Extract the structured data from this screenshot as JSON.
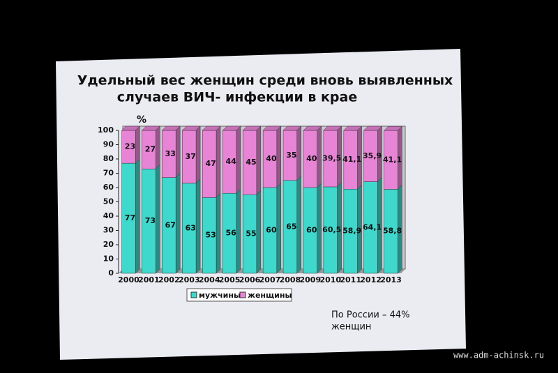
{
  "chart_data": {
    "type": "stacked-bar-3d",
    "title": [
      "Удельный вес  женщин среди вновь выявленных",
      "случаев ВИЧ- инфекции в крае"
    ],
    "y_label": "%",
    "categories": [
      "2000",
      "2001",
      "2002",
      "2003",
      "2004",
      "2005",
      "2006",
      "2007",
      "2008",
      "2009",
      "2010",
      "2011",
      "2012",
      "2013"
    ],
    "series": [
      {
        "name": "мужчины",
        "color": "#3ed8cc",
        "values": [
          77,
          73,
          67,
          63,
          53,
          56,
          55,
          60,
          65,
          60,
          60.5,
          58.9,
          64.1,
          58.8
        ],
        "value_labels": [
          "77",
          "73",
          "67",
          "63",
          "53",
          "56",
          "55",
          "60",
          "65",
          "60",
          "60,5",
          "58,9",
          "64,1",
          "58,8"
        ]
      },
      {
        "name": "женщины",
        "color": "#e884d6",
        "values": [
          23,
          27,
          33,
          37,
          47,
          44,
          45,
          40,
          35,
          40,
          39.5,
          41.1,
          35.9,
          41.1
        ],
        "value_labels": [
          "23",
          "27",
          "33",
          "37",
          "47",
          "44",
          "45",
          "40",
          "35",
          "40",
          "39,5",
          "41,1",
          "35,9",
          "41,1"
        ]
      }
    ],
    "ylim": [
      0,
      100
    ],
    "yticks": [
      0,
      10,
      20,
      30,
      40,
      50,
      60,
      70,
      80,
      90,
      100
    ],
    "annotation": [
      "По России – 44%",
      "женщин"
    ],
    "watermark": "www.adm-achinsk.ru"
  }
}
